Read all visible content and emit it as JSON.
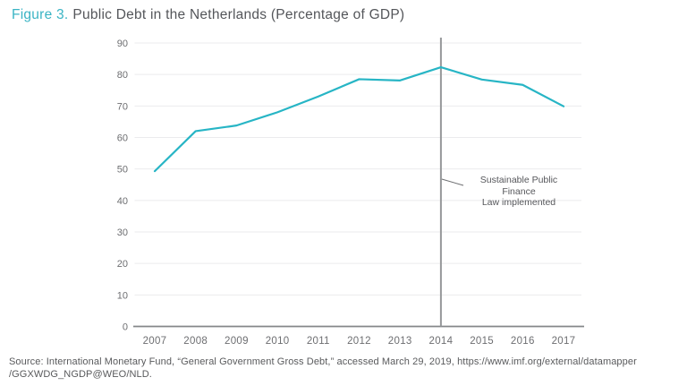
{
  "title": {
    "label": "Figure 3.",
    "text": "Public Debt in the Netherlands (Percentage of GDP)"
  },
  "chart_data": {
    "type": "line",
    "title": "Public Debt in the Netherlands (Percentage of GDP)",
    "categories": [
      "2007",
      "2008",
      "2009",
      "2010",
      "2011",
      "2012",
      "2013",
      "2014",
      "2015",
      "2016",
      "2017"
    ],
    "series": [
      {
        "name": "Public debt (% of GDP)",
        "values": [
          49.3,
          62.0,
          63.8,
          68.0,
          73.0,
          78.5,
          78.1,
          82.3,
          78.4,
          76.7,
          69.9
        ],
        "color": "#27b5c5"
      }
    ],
    "xlabel": "",
    "ylabel": "",
    "ylim": [
      0,
      90
    ],
    "y_ticks": [
      0,
      10,
      20,
      30,
      40,
      50,
      60,
      70,
      80,
      90
    ],
    "grid": "horizontal",
    "legend": "none",
    "marker_line": {
      "x": "2014",
      "color": "#96989a"
    },
    "annotation": {
      "text": "Sustainable Public Finance\nLaw implemented",
      "attached_to": "2014"
    }
  },
  "source": {
    "line1": "Source: International Monetary Fund, “General Government Gross Debt,” accessed March 29, 2019, https://www.imf.org/external/datamapper",
    "line2": "/GGXWDG_NGDP@WEO/NLD."
  },
  "colors": {
    "accent_teal": "#3ab4c4",
    "line": "#27b5c5",
    "marker_line": "#96989a",
    "axis": "#85878a",
    "grid": "#ebebed",
    "title_text": "#54565a",
    "label_text": "#6d6e71",
    "annotation_text": "#56575b",
    "source_text": "#595a5c"
  }
}
